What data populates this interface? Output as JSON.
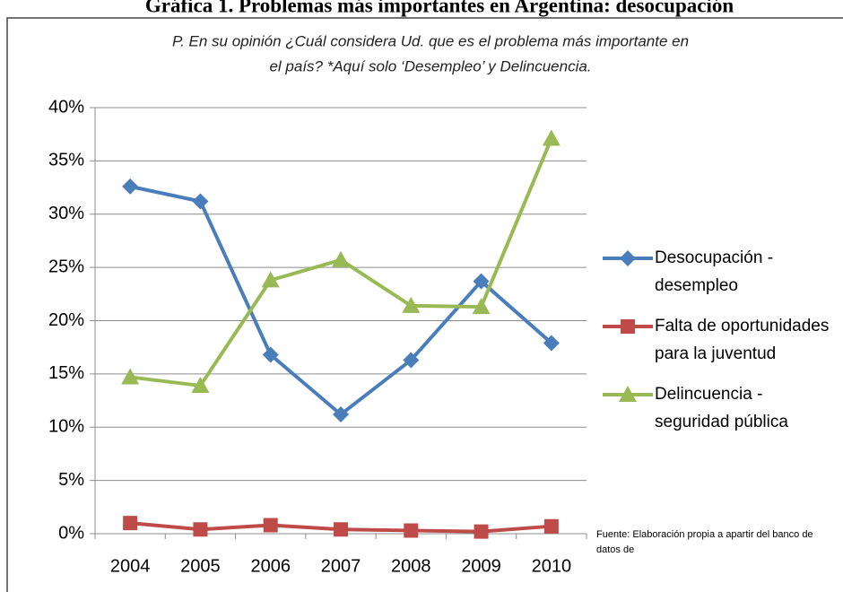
{
  "chart_data": {
    "type": "line",
    "title": "Gráfica 1. Problemas más importantes en Argentina: desocupación",
    "subtitle": [
      "P. En su opinión ¿Cuál considera Ud. que es el problema más importante en",
      "el país? *Aquí solo ‘Desempleo’ y Delincuencia."
    ],
    "source": "Fuente: Elaboración propia a apartir del banco de datos de",
    "categories": [
      "2004",
      "2005",
      "2006",
      "2007",
      "2008",
      "2009",
      "2010"
    ],
    "series": [
      {
        "name": "Desocupación - desempleo",
        "color": "#4a7ebb",
        "marker": "diamond",
        "values": [
          32.6,
          31.2,
          16.8,
          11.2,
          16.3,
          23.7,
          17.9
        ]
      },
      {
        "name": "Falta de oportunidades para la juventud",
        "color": "#be4b48",
        "marker": "square",
        "values": [
          1.0,
          0.4,
          0.8,
          0.4,
          0.3,
          0.2,
          0.7
        ]
      },
      {
        "name": "Delincuencia - seguridad pública",
        "color": "#98b954",
        "marker": "triangle",
        "values": [
          14.7,
          13.9,
          23.8,
          25.7,
          21.4,
          21.3,
          37.1
        ]
      }
    ],
    "ylim": [
      0,
      40
    ],
    "yticks": [
      {
        "value": 0,
        "label": "0%"
      },
      {
        "value": 5,
        "label": "5%"
      },
      {
        "value": 10,
        "label": "10%"
      },
      {
        "value": 15,
        "label": "15%"
      },
      {
        "value": 20,
        "label": "20%"
      },
      {
        "value": 25,
        "label": "25%"
      },
      {
        "value": 30,
        "label": "30%"
      },
      {
        "value": 35,
        "label": "35%"
      },
      {
        "value": 40,
        "label": "40%"
      }
    ],
    "grid": true,
    "legend": "right"
  }
}
